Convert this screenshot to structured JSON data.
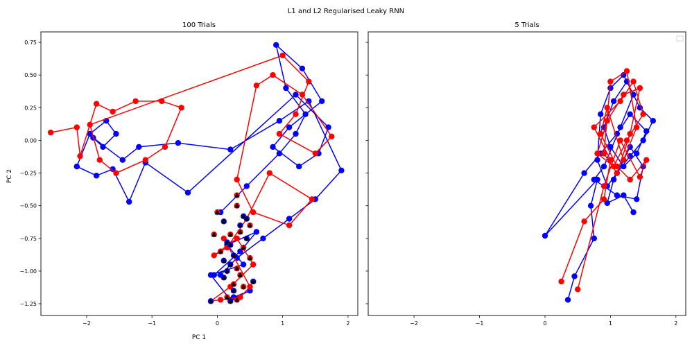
{
  "figure": {
    "title": "L1 and L2 Regularised Leaky RNN"
  },
  "colors": {
    "series_a": "#0000ff",
    "series_b": "#ff0000",
    "start_marker": "#000000"
  },
  "chart_data": [
    {
      "type": "line",
      "title": "100 Trials",
      "xlabel": "PC 1",
      "ylabel": "PC 2",
      "xlim": [
        -2.7,
        2.15
      ],
      "ylim": [
        -1.34,
        0.83
      ],
      "xticks": [
        -2,
        -1,
        0,
        1,
        2
      ],
      "yticks": [
        -1.25,
        -1.0,
        -0.75,
        -0.5,
        -0.25,
        0.0,
        0.25,
        0.5,
        0.75
      ],
      "ytick_labels": [
        "−1.25",
        "−1.00",
        "−0.75",
        "−0.50",
        "−0.25",
        "0.00",
        "0.25",
        "0.50",
        "0.75"
      ],
      "xtick_labels": [
        "−2",
        "−1",
        "0",
        "1",
        "2"
      ],
      "grid": false,
      "legend": null,
      "series": [
        {
          "color": "blue",
          "x": [
            0.05,
            0.45,
            0.95,
            1.2,
            1.35,
            1.05,
            0.9,
            1.3,
            1.6,
            1.1,
            0.85,
            1.25,
            1.55,
            1.7,
            1.2,
            -0.45,
            -1.1,
            -1.35,
            -1.6,
            -1.85,
            -2.15,
            -1.95,
            -1.7,
            -1.55,
            -1.75,
            -1.9,
            -1.45,
            -1.2,
            -0.6,
            0.2,
            0.95,
            1.4,
            1.9,
            1.5,
            1.1,
            0.7,
            0.3,
            0.05,
            -0.05,
            0.35,
            0.6,
            0.15,
            0.4,
            -0.1,
            0.2,
            0.5,
            0.25
          ],
          "y": [
            -0.55,
            -0.35,
            -0.1,
            0.05,
            0.2,
            0.4,
            0.73,
            0.55,
            0.3,
            0.1,
            -0.05,
            -0.2,
            -0.1,
            0.1,
            0.35,
            -0.4,
            -0.17,
            -0.47,
            -0.22,
            -0.27,
            -0.2,
            0.05,
            0.15,
            0.05,
            -0.05,
            0.02,
            -0.15,
            -0.05,
            -0.02,
            -0.07,
            0.15,
            0.3,
            -0.23,
            -0.45,
            -0.6,
            -0.75,
            -0.9,
            -1.03,
            -1.03,
            -0.85,
            -0.7,
            -0.8,
            -0.95,
            -1.03,
            -1.22,
            -1.15,
            -1.2
          ]
        },
        {
          "color": "red",
          "x": [
            -2.55,
            -2.15,
            -2.1,
            -1.85,
            -1.6,
            -1.25,
            -0.85,
            -0.55,
            -0.8,
            -1.1,
            -1.55,
            -1.8,
            -1.95,
            1.0,
            1.4,
            1.2,
            0.95,
            1.5,
            1.75,
            1.3,
            0.85,
            0.6,
            0.3,
            0.55,
            1.1,
            1.45,
            0.8,
            0.45,
            0.15,
            -0.05,
            0.3,
            0.55,
            0.2,
            -0.1,
            0.05,
            0.35,
            0.5,
            0.1
          ],
          "y": [
            0.06,
            0.1,
            -0.12,
            0.28,
            0.22,
            0.3,
            0.3,
            0.25,
            -0.05,
            -0.15,
            -0.25,
            -0.15,
            0.12,
            0.65,
            0.45,
            0.2,
            0.05,
            -0.1,
            0.03,
            0.35,
            0.5,
            0.42,
            -0.3,
            -0.55,
            -0.65,
            -0.45,
            -0.25,
            -0.6,
            -0.82,
            -0.88,
            -0.75,
            -0.95,
            -1.12,
            -1.23,
            -1.22,
            -1.2,
            -1.12,
            -0.75
          ]
        }
      ],
      "start_markers_note": "triangle markers at trajectory starts",
      "start_markers": {
        "x": [
          0.0,
          0.1,
          0.3,
          0.35,
          0.2,
          0.15,
          0.05,
          0.25,
          0.4,
          0.45,
          0.5,
          0.2,
          0.3,
          0.1,
          0.35,
          0.55,
          0.4,
          0.25,
          0.15,
          0.2,
          0.3,
          0.45,
          -0.05,
          0.1,
          0.35,
          0.4,
          0.3,
          0.2,
          0.5,
          0.15,
          0.25,
          -0.1
        ],
        "y": [
          -0.55,
          -0.62,
          -0.5,
          -0.65,
          -0.72,
          -0.78,
          -0.85,
          -0.88,
          -0.82,
          -0.75,
          -0.9,
          -0.95,
          -0.98,
          -1.05,
          -1.03,
          -1.08,
          -1.12,
          -1.15,
          -1.2,
          -1.23,
          -1.22,
          -0.6,
          -0.72,
          -0.92,
          -0.7,
          -0.58,
          -0.42,
          -0.8,
          -0.65,
          -1.0,
          -1.1,
          -1.23
        ]
      }
    },
    {
      "type": "line",
      "title": "5 Trials",
      "xlabel": "",
      "ylabel": "",
      "xlim": [
        -2.7,
        2.15
      ],
      "ylim": [
        -1.34,
        0.83
      ],
      "xticks": [
        -2,
        -1,
        0,
        1,
        2
      ],
      "xtick_labels": [
        "−2",
        "−1",
        "0",
        "1",
        "2"
      ],
      "grid": false,
      "legend": "top-right (empty)",
      "series": [
        {
          "color": "blue",
          "x": [
            0.35,
            0.45,
            0.75,
            0.7,
            0.8,
            0.0,
            0.6,
            0.85,
            1.1,
            1.3,
            1.55,
            1.4,
            1.2,
            1.0,
            0.9,
            1.05,
            1.25,
            1.45,
            1.65,
            1.5,
            1.3,
            1.1,
            0.95,
            0.8,
            0.85,
            1.0,
            1.2,
            1.35,
            1.15,
            0.9,
            0.75,
            1.1,
            1.4,
            1.5,
            1.3,
            1.05,
            0.95,
            1.2,
            1.35
          ],
          "y": [
            -1.22,
            -1.04,
            -0.75,
            -0.5,
            -0.3,
            -0.73,
            -0.25,
            -0.1,
            0.05,
            0.2,
            0.07,
            -0.1,
            -0.2,
            -0.05,
            0.1,
            0.3,
            0.45,
            0.25,
            0.15,
            0.0,
            -0.12,
            -0.25,
            -0.35,
            -0.15,
            0.2,
            0.4,
            0.5,
            0.35,
            0.1,
            -0.2,
            -0.3,
            -0.42,
            -0.45,
            -0.2,
            -0.05,
            -0.3,
            -0.48,
            -0.42,
            -0.55
          ]
        },
        {
          "color": "red",
          "x": [
            0.25,
            0.6,
            0.9,
            1.0,
            0.75,
            1.15,
            1.35,
            1.5,
            1.25,
            1.05,
            0.8,
            0.95,
            1.2,
            1.45,
            1.3,
            1.1,
            0.9,
            1.0,
            1.25,
            1.4,
            1.2,
            0.95,
            0.85,
            1.1,
            1.3,
            1.55,
            1.45,
            1.15,
            0.9,
            0.5
          ],
          "y": [
            -1.08,
            -0.62,
            -0.45,
            -0.15,
            0.1,
            0.3,
            0.45,
            0.2,
            0.0,
            -0.2,
            -0.1,
            0.15,
            0.35,
            0.4,
            0.05,
            -0.25,
            -0.1,
            0.45,
            0.53,
            0.1,
            -0.15,
            0.25,
            0.05,
            -0.2,
            -0.3,
            -0.15,
            -0.28,
            0.0,
            -0.35,
            -1.14
          ]
        }
      ]
    }
  ]
}
